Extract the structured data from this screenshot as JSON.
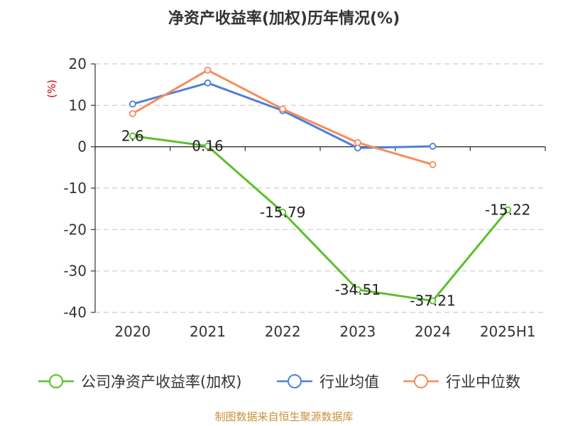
{
  "chart_data": {
    "type": "line",
    "title": "净资产收益率(加权)历年情况(%)",
    "ylabel": "(%)",
    "categories": [
      "2020",
      "2021",
      "2022",
      "2023",
      "2024",
      "2025H1"
    ],
    "ylim": [
      -40,
      20
    ],
    "yticks": [
      20,
      10,
      0,
      -10,
      -20,
      -30,
      -40
    ],
    "grid": true,
    "legend_position": "bottom",
    "series": [
      {
        "name": "公司净资产收益率(加权)",
        "color": "#5cbf2a",
        "values": [
          2.6,
          0.16,
          -15.79,
          -34.51,
          -37.21,
          -15.22
        ],
        "labels": [
          "2.6",
          "0.16",
          "-15.79",
          "-34.51",
          "-37.21",
          "-15.22"
        ]
      },
      {
        "name": "行业均值",
        "color": "#4f7fd9",
        "values": [
          10.3,
          15.4,
          8.7,
          -0.3,
          0.1,
          null
        ]
      },
      {
        "name": "行业中位数",
        "color": "#f58d5b",
        "values": [
          8.0,
          18.5,
          9.1,
          1.0,
          -4.3,
          null
        ]
      }
    ],
    "source": "制图数据来自恒生聚源数据库"
  }
}
